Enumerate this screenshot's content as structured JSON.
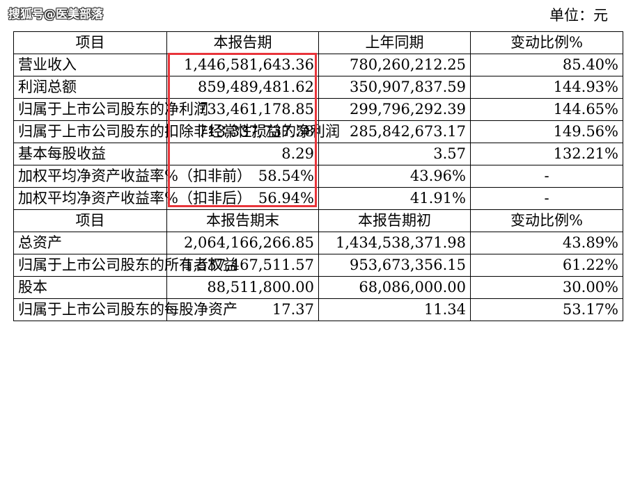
{
  "watermark": "搜狐号@医美部落",
  "unit": "单位：元",
  "headers1": [
    "项目",
    "本报告期",
    "上年同期",
    "变动比例%"
  ],
  "rows1": [
    {
      "label": "营业收入",
      "current": "1,446,581,643.36",
      "previous": "780,260,212.25",
      "change": "85.40%"
    },
    {
      "label": "利润总额",
      "current": "859,489,481.62",
      "previous": "350,907,837.59",
      "change": "144.93%"
    },
    {
      "label": "归属于上市公司股东的净利润",
      "current": "733,461,178.85",
      "previous": "299,796,292.39",
      "change": "144.65%"
    },
    {
      "label": "归属于上市公司股东的扣除非经常性损益的净利润",
      "current": "713,337,737.58",
      "previous": "285,842,673.17",
      "change": "149.56%"
    },
    {
      "label": "基本每股收益",
      "current": "8.29",
      "previous": "3.57",
      "change": "132.21%"
    },
    {
      "label": "加权平均净资产收益率%（扣非前）",
      "current": "58.54%",
      "previous": "43.96%",
      "change": "-"
    },
    {
      "label": "加权平均净资产收益率%（扣非后）",
      "current": "56.94%",
      "previous": "41.91%",
      "change": "-"
    }
  ],
  "headers2": [
    "项目",
    "本报告期末",
    "本报告期初",
    "变动比例%"
  ],
  "rows2": [
    {
      "label": "总资产",
      "current": "2,064,166,266.85",
      "previous": "1,434,538,371.98",
      "change": "43.89%"
    },
    {
      "label": "归属于上市公司股东的所有者权益",
      "current": "1,537,467,511.57",
      "previous": "953,673,356.15",
      "change": "61.22%"
    },
    {
      "label": "股本",
      "current": "88,511,800.00",
      "previous": "68,086,000.00",
      "change": "30.00%"
    },
    {
      "label": "归属于上市公司股东的每股净资产",
      "current": "17.37",
      "previous": "11.34",
      "change": "53.17%"
    }
  ]
}
